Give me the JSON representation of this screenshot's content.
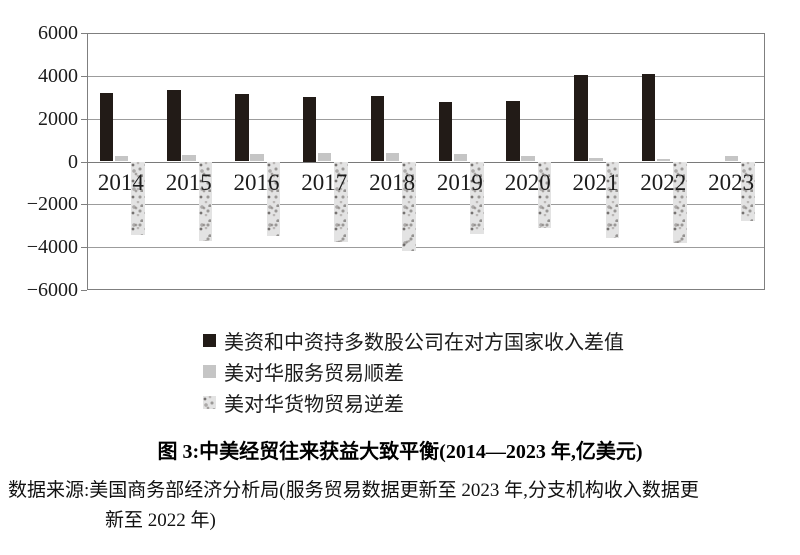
{
  "figure": {
    "caption": "图 3:中美经贸往来获益大致平衡(2014—2023 年,亿美元)",
    "source_line1": "数据来源:美国商务部经济分析局(服务贸易数据更新至 2023 年,分支机构收入数据更",
    "source_line2": "新至 2022 年)"
  },
  "chart_data": {
    "type": "bar",
    "title": "图 3:中美经贸往来获益大致平衡(2014—2023 年,亿美元)",
    "unit": "亿美元",
    "categories": [
      "2014",
      "2015",
      "2016",
      "2017",
      "2018",
      "2019",
      "2020",
      "2021",
      "2022",
      "2023"
    ],
    "series": [
      {
        "key": "income-diff",
        "name": "美资和中资持多数股公司在对方国家收入差值",
        "color": "#221b17",
        "pattern": "solid",
        "values": [
          3200,
          3350,
          3150,
          3000,
          3060,
          2800,
          2840,
          4050,
          4100,
          null
        ]
      },
      {
        "key": "services-surplus",
        "name": "美对华服务贸易顺差",
        "color": "#c5c5c5",
        "pattern": "solid",
        "values": [
          270,
          300,
          370,
          380,
          390,
          360,
          250,
          150,
          100,
          260
        ]
      },
      {
        "key": "goods-deficit",
        "name": "美对华货物贸易逆差",
        "color": "#e3e3e3",
        "pattern": "speckled",
        "values": [
          -3450,
          -3700,
          -3470,
          -3780,
          -4180,
          -3400,
          -3100,
          -3550,
          -3800,
          -2800
        ]
      }
    ],
    "ylim": [
      -6000,
      6000
    ],
    "ytick_step": 2000,
    "yticks": [
      {
        "label": "6000",
        "value": 6000
      },
      {
        "label": "4000",
        "value": 4000
      },
      {
        "label": "2000",
        "value": 2000
      },
      {
        "label": "0",
        "value": 0
      },
      {
        "label": "−2000",
        "value": -2000
      },
      {
        "label": "−4000",
        "value": -4000
      },
      {
        "label": "−6000",
        "value": -6000
      }
    ],
    "grid": true,
    "legend_position": "bottom",
    "colors": {
      "gridline": "#9c9c9c",
      "axis_border": "#7f7f7f",
      "text": "#1c1c1c"
    }
  }
}
